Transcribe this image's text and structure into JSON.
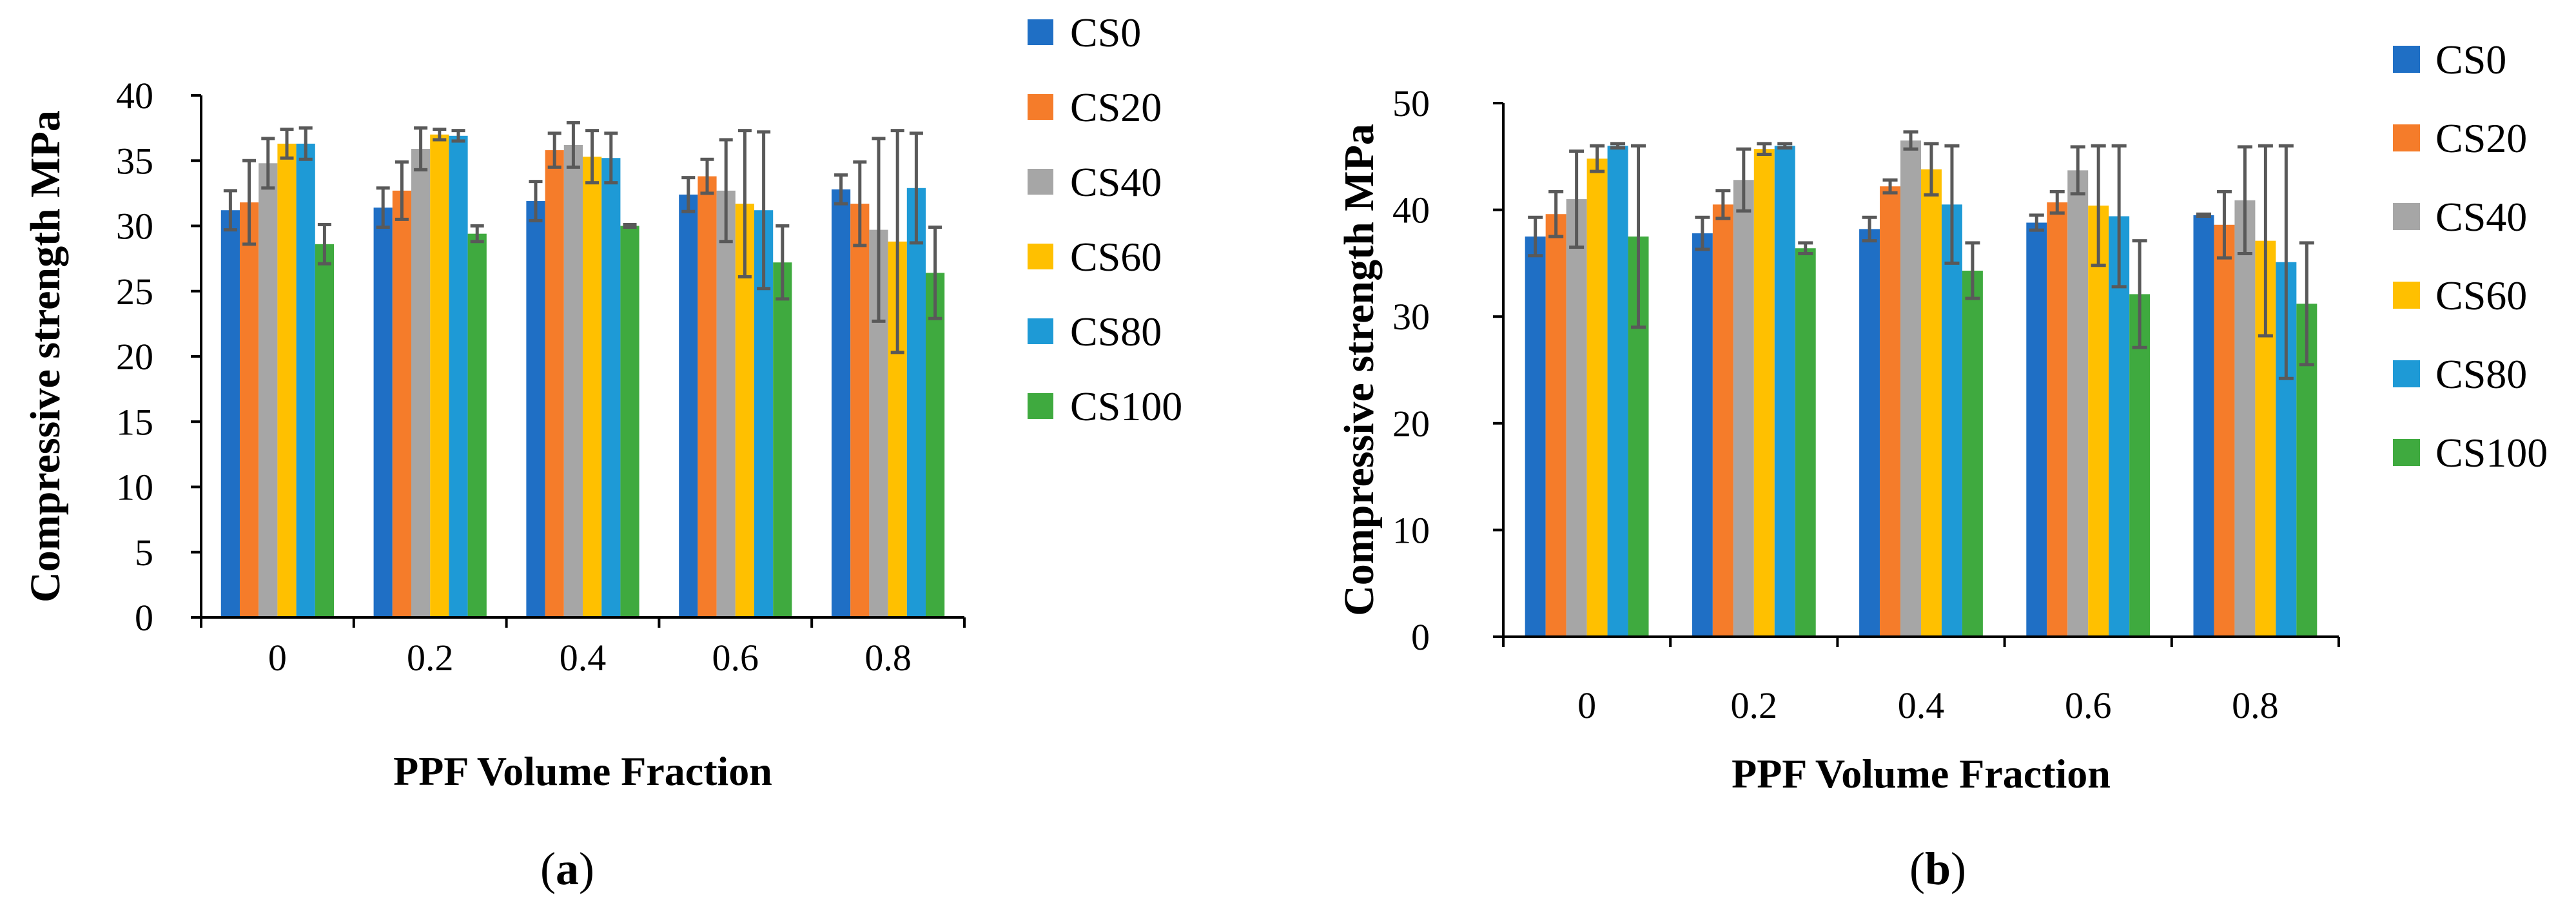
{
  "colors": {
    "CS0": "#1f6fc5",
    "CS20": "#f57c2a",
    "CS40": "#a6a6a6",
    "CS60": "#ffc000",
    "CS80": "#1e9ad6",
    "CS100": "#3faa3f",
    "error_bar": "#595959",
    "axis": "#000000"
  },
  "chart_data": [
    {
      "type": "bar",
      "panel_label_open": "(",
      "panel_label_letter": "a",
      "panel_label_close": ")",
      "xlabel": "PPF Volume Fraction",
      "ylabel": "Compressive strength MPa",
      "categories": [
        "0",
        "0.2",
        "0.4",
        "0.6",
        "0.8"
      ],
      "ylim": [
        0,
        40
      ],
      "yticks": [
        0,
        5,
        10,
        15,
        20,
        25,
        30,
        35,
        40
      ],
      "error_bars": true,
      "legend_position": "right",
      "series": [
        {
          "name": "CS0",
          "values": [
            31.2,
            31.4,
            31.9,
            32.4,
            32.8
          ],
          "errors": [
            1.5,
            1.5,
            1.5,
            1.3,
            1.1
          ]
        },
        {
          "name": "CS20",
          "values": [
            31.8,
            32.7,
            35.8,
            33.8,
            31.7
          ],
          "errors": [
            3.2,
            2.2,
            1.3,
            1.3,
            3.2
          ]
        },
        {
          "name": "CS40",
          "values": [
            34.8,
            35.9,
            36.2,
            32.7,
            29.7
          ],
          "errors": [
            1.9,
            1.6,
            1.7,
            3.9,
            7.0
          ]
        },
        {
          "name": "CS60",
          "values": [
            36.3,
            37.0,
            35.3,
            31.7,
            28.8
          ],
          "errors": [
            1.1,
            0.4,
            2.0,
            5.6,
            8.5
          ]
        },
        {
          "name": "CS80",
          "values": [
            36.3,
            36.9,
            35.2,
            31.2,
            32.9
          ],
          "errors": [
            1.2,
            0.4,
            1.9,
            6.0,
            4.2
          ]
        },
        {
          "name": "CS100",
          "values": [
            28.6,
            29.4,
            30.0,
            27.2,
            26.4
          ],
          "errors": [
            1.5,
            0.6,
            0.1,
            2.8,
            3.5
          ]
        }
      ]
    },
    {
      "type": "bar",
      "panel_label_open": "(",
      "panel_label_letter": "b",
      "panel_label_close": ")",
      "xlabel": "PPF Volume Fraction",
      "ylabel": "Compressive strength MPa",
      "categories": [
        "0",
        "0.2",
        "0.4",
        "0.6",
        "0.8"
      ],
      "ylim": [
        0,
        50
      ],
      "yticks": [
        0,
        10,
        20,
        30,
        40,
        50
      ],
      "error_bars": true,
      "legend_position": "right",
      "series": [
        {
          "name": "CS0",
          "values": [
            37.5,
            37.8,
            38.2,
            38.8,
            39.5
          ],
          "errors": [
            1.8,
            1.5,
            1.1,
            0.7,
            0.1
          ]
        },
        {
          "name": "CS20",
          "values": [
            39.6,
            40.5,
            42.2,
            40.7,
            38.6
          ],
          "errors": [
            2.1,
            1.3,
            0.6,
            1.0,
            3.1
          ]
        },
        {
          "name": "CS40",
          "values": [
            41.0,
            42.8,
            46.5,
            43.7,
            40.9
          ],
          "errors": [
            4.5,
            2.9,
            0.8,
            2.2,
            5.0
          ]
        },
        {
          "name": "CS60",
          "values": [
            44.8,
            45.7,
            43.8,
            40.4,
            37.1
          ],
          "errors": [
            1.2,
            0.5,
            2.4,
            5.6,
            8.9
          ]
        },
        {
          "name": "CS80",
          "values": [
            46.0,
            46.0,
            40.5,
            39.4,
            35.1
          ],
          "errors": [
            0.2,
            0.2,
            5.5,
            6.6,
            10.9
          ]
        },
        {
          "name": "CS100",
          "values": [
            37.5,
            36.4,
            34.3,
            32.1,
            31.2
          ],
          "errors": [
            8.5,
            0.5,
            2.6,
            5.0,
            5.7
          ]
        }
      ]
    }
  ]
}
